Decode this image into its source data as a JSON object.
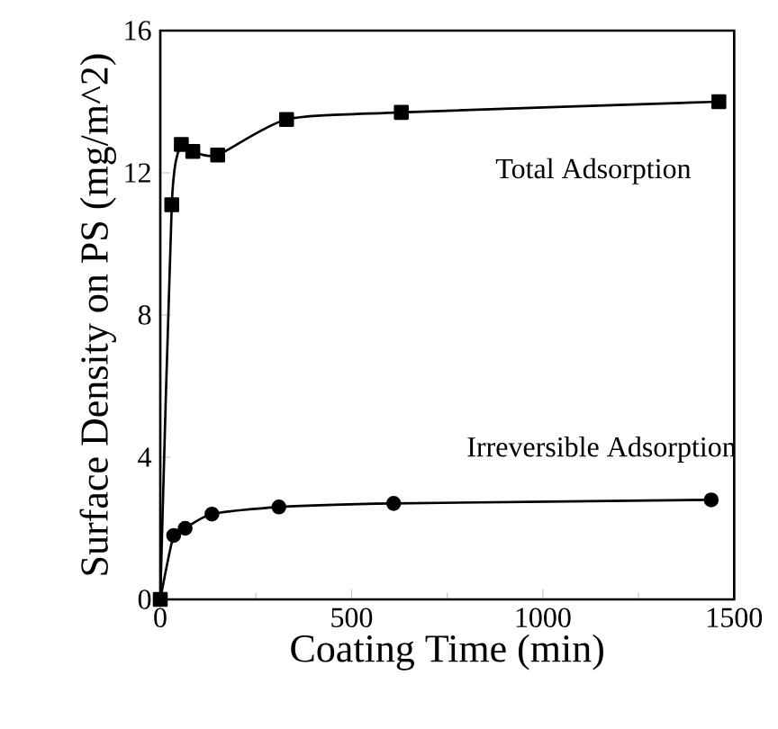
{
  "chart_data": {
    "type": "line",
    "xlabel": "Coating Time (min)",
    "ylabel": "Surface Density on PS (mg/m^2)",
    "xlim": [
      0,
      1500
    ],
    "xticks": [
      0,
      500,
      1000,
      1500
    ],
    "ylim": [
      0,
      16
    ],
    "yticks": [
      0,
      4,
      8,
      12,
      16
    ],
    "grid": false,
    "legend": false,
    "line_style": "solid",
    "series": [
      {
        "name": "Total Adsorption",
        "color": "#000000",
        "marker": "square",
        "x": [
          0,
          30,
          55,
          85,
          150,
          330,
          630,
          1460
        ],
        "values": [
          0,
          11.1,
          12.8,
          12.6,
          12.5,
          13.5,
          13.7,
          14.0
        ]
      },
      {
        "name": "Irreversible Adsorption",
        "color": "#000000",
        "marker": "circle",
        "x": [
          0,
          35,
          65,
          135,
          310,
          610,
          1440
        ],
        "values": [
          0,
          1.8,
          2.0,
          2.4,
          2.6,
          2.7,
          2.8
        ]
      }
    ]
  }
}
